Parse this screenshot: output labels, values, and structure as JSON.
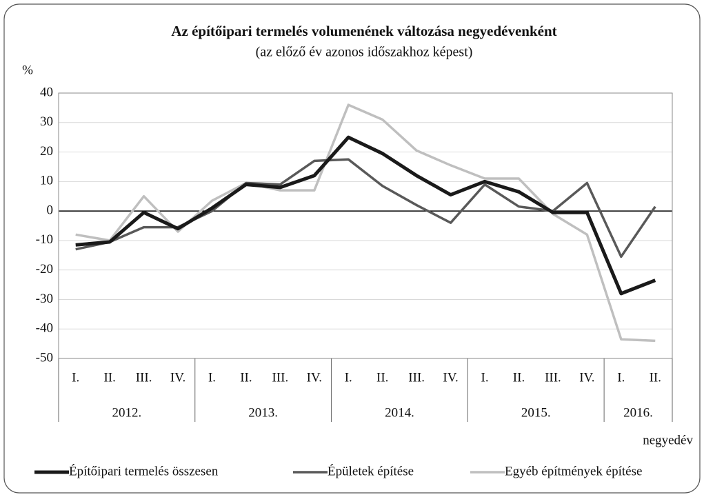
{
  "chart_data": {
    "type": "line",
    "title": "Az építőipari termelés volumenének változása negyedévenként",
    "subtitle": "(az előző év azonos időszakhoz képest)",
    "y_axis_label": "%",
    "x_axis_label": "negyedév",
    "groups": [
      {
        "label": "2012.",
        "categories": [
          "I.",
          "II.",
          "III.",
          "IV."
        ]
      },
      {
        "label": "2013.",
        "categories": [
          "I.",
          "II.",
          "III.",
          "IV."
        ]
      },
      {
        "label": "2014.",
        "categories": [
          "I.",
          "II.",
          "III.",
          "IV."
        ]
      },
      {
        "label": "2015.",
        "categories": [
          "I.",
          "II.",
          "III.",
          "IV."
        ]
      },
      {
        "label": "2016.",
        "categories": [
          "I.",
          "II."
        ]
      }
    ],
    "series": [
      {
        "name": "Építőipari termelés összesen",
        "color": "#1a1a1a",
        "values": [
          -11.5,
          -10.5,
          -0.5,
          -6,
          1,
          9,
          8,
          12,
          25,
          19.5,
          12,
          5.5,
          10,
          6.5,
          -0.5,
          -0.5,
          -28,
          -23.5
        ]
      },
      {
        "name": "Épületek építése",
        "color": "#595959",
        "values": [
          -13,
          -10.5,
          -5.5,
          -5.5,
          0,
          9.5,
          9,
          17,
          17.5,
          8.5,
          2,
          -4,
          9,
          1.5,
          0,
          9.5,
          -15.5,
          1.5
        ]
      },
      {
        "name": "Egyéb építmények építése",
        "color": "#bfbfbf",
        "values": [
          -8,
          -10,
          5,
          -7,
          3.5,
          9.5,
          7,
          7,
          36,
          31,
          20.5,
          15.5,
          11,
          11,
          -1,
          -8,
          -43.5,
          -44
        ]
      }
    ],
    "ylim": [
      -50,
      40
    ],
    "yticks": [
      -50,
      -40,
      -30,
      -20,
      -10,
      0,
      10,
      20,
      30,
      40
    ],
    "grid": true,
    "legend": "bottom"
  }
}
